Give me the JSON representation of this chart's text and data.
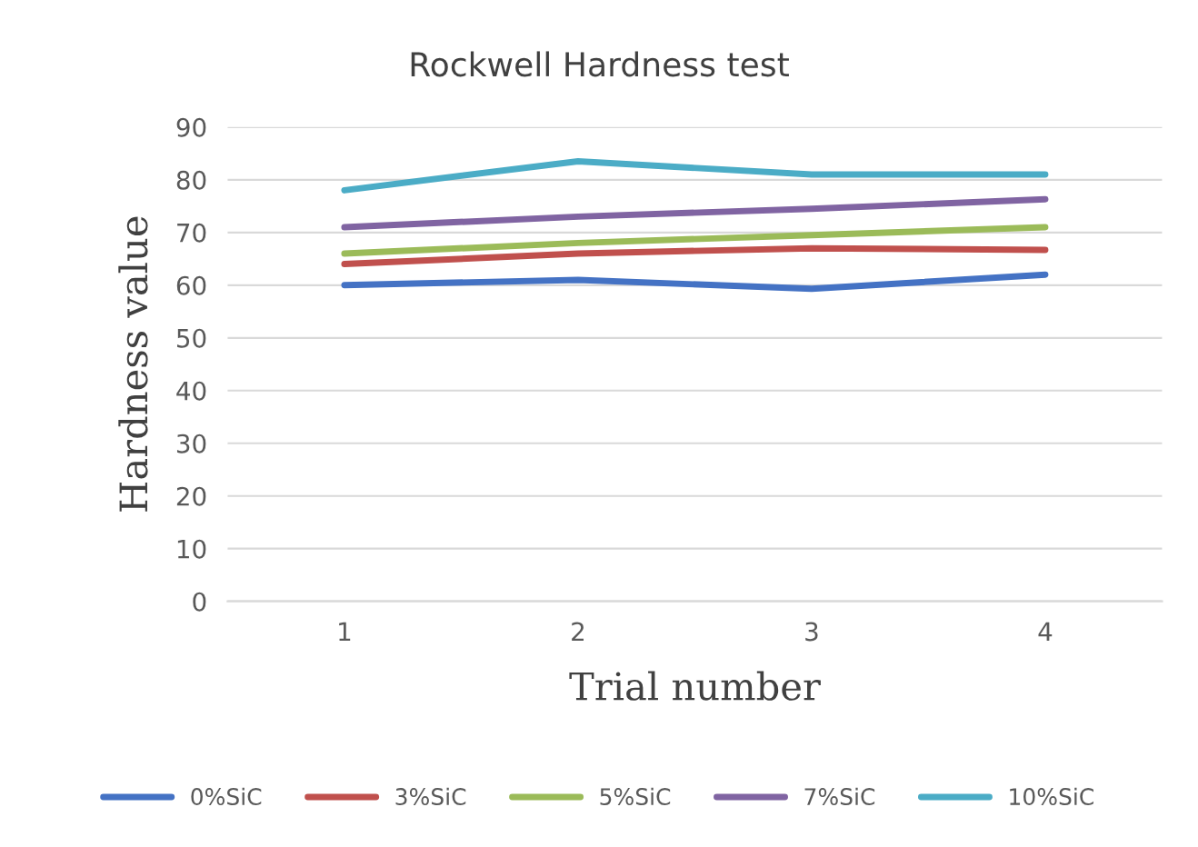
{
  "chart_data": {
    "type": "line",
    "title": "Rockwell Hardness test",
    "xlabel": "Trial number",
    "ylabel": "Hardness value",
    "categories": [
      "1",
      "2",
      "3",
      "4"
    ],
    "series": [
      {
        "name": "0%SiC",
        "color": "#4472c4",
        "values": [
          60,
          61,
          59.3,
          62
        ]
      },
      {
        "name": "3%SiC",
        "color": "#c0504d",
        "values": [
          64,
          66,
          67,
          66.7
        ]
      },
      {
        "name": "5%SiC",
        "color": "#9bbb59",
        "values": [
          66,
          68,
          69.5,
          71
        ]
      },
      {
        "name": "7%SiC",
        "color": "#8064a2",
        "values": [
          71,
          73,
          74.5,
          76.3
        ]
      },
      {
        "name": "10%SiC",
        "color": "#4bacc6",
        "values": [
          78,
          83.5,
          81,
          81
        ]
      }
    ],
    "ylim": [
      0,
      90
    ],
    "yticks": [
      0,
      10,
      20,
      30,
      40,
      50,
      60,
      70,
      80,
      90
    ],
    "grid": "y",
    "legend": "bottom",
    "marker": "none",
    "line_style": "solid"
  }
}
